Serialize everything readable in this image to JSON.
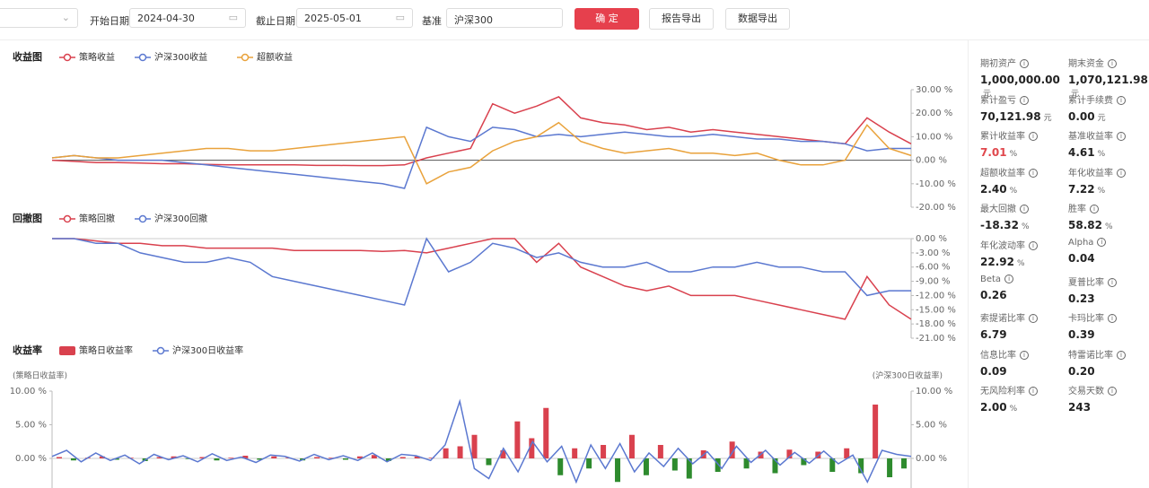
{
  "toolbar": {
    "start_label": "开始日期",
    "start_date": "2024-04-30",
    "end_label": "截止日期",
    "end_date": "2025-05-01",
    "benchmark_label": "基准",
    "benchmark": "沪深300",
    "confirm": "确 定",
    "export_report": "报告导出",
    "export_data": "数据导出"
  },
  "chart_data": [
    {
      "type": "line",
      "title": "收益图",
      "ylim": [
        -20,
        30
      ],
      "grid": false,
      "yticks": [
        {
          "value": 30,
          "label": "30.00 %"
        },
        {
          "value": 20,
          "label": "20.00 %"
        },
        {
          "value": 10,
          "label": "10.00 %"
        },
        {
          "value": 0,
          "label": "0.00 %"
        },
        {
          "value": -10,
          "label": "-10.00 %"
        },
        {
          "value": -20,
          "label": "-20.00 %"
        }
      ],
      "series": [
        {
          "name": "策略收益",
          "color": "#d9414e",
          "values": [
            0,
            -0.5,
            -1,
            -1,
            -1.2,
            -1.5,
            -1.5,
            -1.8,
            -2,
            -2,
            -2,
            -2,
            -2.2,
            -2.2,
            -2.3,
            -2.3,
            -2,
            1,
            3,
            5,
            24,
            20,
            23,
            27,
            18,
            16,
            15,
            13,
            14,
            12,
            13,
            12,
            11,
            10,
            9,
            8,
            7,
            18,
            12,
            7
          ]
        },
        {
          "name": "沪深300收益",
          "color": "#5b78d0",
          "values": [
            1,
            2,
            1,
            0,
            0,
            0,
            -1,
            -2,
            -3,
            -4,
            -5,
            -6,
            -7,
            -8,
            -9,
            -10,
            -12,
            14,
            10,
            8,
            14,
            13,
            10,
            11,
            10,
            11,
            12,
            11,
            10,
            10,
            11,
            10,
            9,
            9,
            8,
            8,
            7,
            4,
            5,
            5
          ]
        },
        {
          "name": "超额收益",
          "color": "#e9a23b",
          "values": [
            1,
            2,
            1,
            1,
            2,
            3,
            4,
            5,
            5,
            4,
            4,
            5,
            6,
            7,
            8,
            9,
            10,
            -10,
            -5,
            -3,
            4,
            8,
            10,
            16,
            8,
            5,
            3,
            4,
            5,
            3,
            3,
            2,
            3,
            0,
            -2,
            -2,
            0,
            15,
            5,
            2
          ]
        }
      ]
    },
    {
      "type": "line",
      "title": "回撤图",
      "ylim": [
        -21,
        0
      ],
      "grid": false,
      "yticks": [
        {
          "value": 0,
          "label": "0.00 %"
        },
        {
          "value": -3,
          "label": "-3.00 %"
        },
        {
          "value": -6,
          "label": "-6.00 %"
        },
        {
          "value": -9,
          "label": "-9.00 %"
        },
        {
          "value": -12,
          "label": "-12.00 %"
        },
        {
          "value": -15,
          "label": "-15.00 %"
        },
        {
          "value": -18,
          "label": "-18.00 %"
        },
        {
          "value": -21,
          "label": "-21.00 %"
        }
      ],
      "series": [
        {
          "name": "策略回撤",
          "color": "#d9414e",
          "values": [
            0,
            0,
            -0.5,
            -1,
            -1,
            -1.5,
            -1.5,
            -2,
            -2,
            -2,
            -2,
            -2.5,
            -2.5,
            -2.5,
            -2.5,
            -2.7,
            -2.5,
            -3,
            -2,
            -1,
            0,
            0,
            -5,
            -1,
            -6,
            -8,
            -10,
            -11,
            -10,
            -12,
            -12,
            -12,
            -13,
            -14,
            -15,
            -16,
            -17,
            -8,
            -14,
            -17
          ]
        },
        {
          "name": "沪深300回撤",
          "color": "#5b78d0",
          "values": [
            0,
            0,
            -1,
            -1,
            -3,
            -4,
            -5,
            -5,
            -4,
            -5,
            -8,
            -9,
            -10,
            -11,
            -12,
            -13,
            -14,
            0,
            -7,
            -5,
            -1,
            -2,
            -4,
            -3,
            -5,
            -6,
            -6,
            -5,
            -7,
            -7,
            -6,
            -6,
            -5,
            -6,
            -6,
            -7,
            -7,
            -12,
            -11,
            -11
          ]
        }
      ]
    },
    {
      "type": "bar",
      "title": "收益率",
      "y_label": "(策略日收益率)",
      "y2_label": "(沪深300日收益率)",
      "ylim": [
        -10,
        10
      ],
      "y2lim": [
        -10,
        10
      ],
      "grid": false,
      "yticks": [
        {
          "value": 10,
          "label": "10.00 %"
        },
        {
          "value": 5,
          "label": "5.00 %"
        },
        {
          "value": 0,
          "label": "0.00 %"
        }
      ],
      "y2ticks": [
        {
          "value": 10,
          "label": "10.00 %"
        },
        {
          "value": 5,
          "label": "5.00 %"
        },
        {
          "value": 0,
          "label": "0.00 %"
        }
      ],
      "series": [
        {
          "name": "策略日收益率",
          "type": "bar",
          "color": "#d9414e",
          "negative_color": "#2e8b2e",
          "values": [
            0.2,
            -0.3,
            0.1,
            0.3,
            -0.2,
            0.1,
            -0.4,
            0.2,
            0.3,
            -0.1,
            0.2,
            -0.3,
            0.1,
            0.4,
            -0.2,
            0.3,
            0.1,
            -0.3,
            0.2,
            0.1,
            -0.2,
            0.3,
            0.5,
            -0.4,
            0.2,
            0.3,
            0.1,
            1.5,
            1.8,
            3.5,
            -1.0,
            1.2,
            5.5,
            3.0,
            7.5,
            -2.5,
            1.5,
            -1.5,
            2.0,
            -3.5,
            3.5,
            -2.5,
            2.0,
            -1.8,
            -3.0,
            1.2,
            -2.0,
            2.5,
            -1.5,
            1.0,
            -2.2,
            1.3,
            -1.0,
            1.0,
            -2.0,
            1.5,
            -2.2,
            8.0,
            -2.8,
            -1.5
          ]
        },
        {
          "name": "沪深300日收益率",
          "type": "line",
          "axis": "y2",
          "color": "#5b78d0",
          "values": [
            0.3,
            1.2,
            -0.5,
            0.8,
            -0.3,
            0.5,
            -0.8,
            0.6,
            -0.2,
            0.4,
            -0.5,
            0.7,
            -0.3,
            0.2,
            -0.6,
            0.5,
            0.3,
            -0.4,
            0.6,
            -0.2,
            0.4,
            -0.3,
            0.8,
            -0.5,
            0.6,
            0.4,
            -0.3,
            2,
            8.5,
            -1.5,
            -3.0,
            1.5,
            -2,
            2.5,
            -0.5,
            1.8,
            -3.5,
            2.0,
            -1.5,
            2.2,
            -2.0,
            0.8,
            -1.2,
            1.5,
            -0.8,
            1.0,
            -1.5,
            1.8,
            -0.6,
            1.2,
            -1.0,
            0.9,
            -0.7,
            1.1,
            -0.8,
            0.5,
            -3.5,
            1.2,
            0.6,
            0.3
          ]
        }
      ]
    }
  ],
  "stats": [
    {
      "label": "期初资产",
      "value": "1,000,000.00",
      "unit": "元"
    },
    {
      "label": "期末资金",
      "value": "1,070,121.98",
      "unit": "元"
    },
    {
      "label": "累计盈亏",
      "value": "70,121.98",
      "unit": "元"
    },
    {
      "label": "累计手续费",
      "value": "0.00",
      "unit": "元"
    },
    {
      "label": "累计收益率",
      "value": "7.01",
      "unit": "%",
      "color": "#e0474c"
    },
    {
      "label": "基准收益率",
      "value": "4.61",
      "unit": "%"
    },
    {
      "label": "超额收益率",
      "value": "2.40",
      "unit": "%"
    },
    {
      "label": "年化收益率",
      "value": "7.22",
      "unit": "%"
    },
    {
      "label": "最大回撤",
      "value": "-18.32",
      "unit": "%"
    },
    {
      "label": "胜率",
      "value": "58.82",
      "unit": "%"
    },
    {
      "label": "年化波动率",
      "value": "22.92",
      "unit": "%"
    },
    {
      "label": "Alpha",
      "value": "0.04"
    },
    {
      "label": "Beta",
      "value": "0.26"
    },
    {
      "label": "夏普比率",
      "value": "0.23"
    },
    {
      "label": "索提诺比率",
      "value": "6.79"
    },
    {
      "label": "卡玛比率",
      "value": "0.39"
    },
    {
      "label": "信息比率",
      "value": "0.09"
    },
    {
      "label": "特雷诺比率",
      "value": "0.20"
    },
    {
      "label": "无风险利率",
      "value": "2.00",
      "unit": "%"
    },
    {
      "label": "交易天数",
      "value": "243"
    }
  ]
}
